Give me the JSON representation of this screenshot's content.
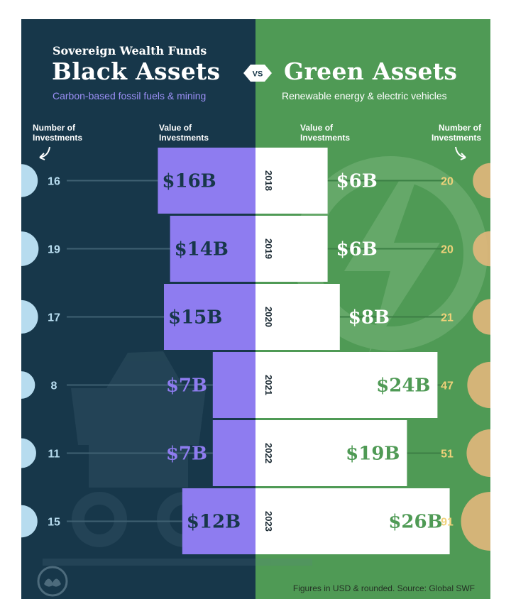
{
  "header": {
    "supertitle": "Sovereign Wealth Funds",
    "title_left": "Black Assets",
    "vs": "VS",
    "title_right": "Green Assets",
    "subtitle_left": "Carbon-based fossil fuels & mining",
    "subtitle_right": "Renewable energy & electric vehicles"
  },
  "columns": {
    "left_count_label": "Number of Investments",
    "left_value_label": "Value of Investments",
    "right_value_label": "Value of Investments",
    "right_count_label": "Number of Investments"
  },
  "footer": {
    "source": "Figures in USD & rounded. Source: Global SWF"
  },
  "colors": {
    "black_bg": "#17374a",
    "green_bg": "#4f9a55",
    "black_bar": "#8e7cf0",
    "green_bar": "#ffffff",
    "black_bubble": "#b7dcef",
    "green_bubble": "#e2b77c"
  },
  "chart_data": {
    "type": "bar",
    "categories": [
      "2018",
      "2019",
      "2020",
      "2021",
      "2022",
      "2023"
    ],
    "series": [
      {
        "name": "Black Assets",
        "values": [
          16,
          14,
          15,
          7,
          7,
          12
        ],
        "labels": [
          "$16B",
          "$14B",
          "$15B",
          "$7B",
          "$7B",
          "$12B"
        ],
        "counts": [
          16,
          19,
          17,
          8,
          11,
          15
        ]
      },
      {
        "name": "Green Assets",
        "values": [
          6,
          6,
          8,
          24,
          19,
          26
        ],
        "labels": [
          "$6B",
          "$6B",
          "$8B",
          "$24B",
          "$19B",
          "$26B"
        ],
        "counts": [
          20,
          20,
          21,
          47,
          51,
          91
        ]
      }
    ]
  }
}
